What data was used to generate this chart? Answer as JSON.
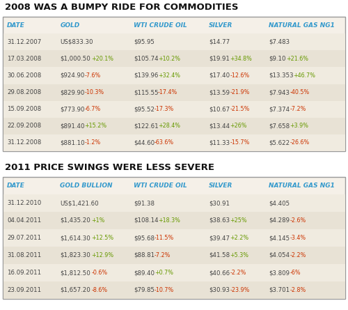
{
  "title1": "2008 WAS A BUMPY RIDE FOR COMMODITIES",
  "title2": "2011 PRICE SWINGS WERE LESS SEVERE",
  "headers1": [
    "DATE",
    "GOLD",
    "WTI CRUDE OIL",
    "SILVER",
    "NATURAL GAS NG1"
  ],
  "headers2": [
    "DATE",
    "GOLD BULLION",
    "WTI CRUDE OIL",
    "SILVER",
    "NATURAL GAS NG1"
  ],
  "table1": [
    [
      "31.12.2007",
      "US$833.30",
      "",
      "$95.95",
      "",
      "$14.77",
      "",
      "$7.483",
      ""
    ],
    [
      "17.03.2008",
      "$1,000.50",
      "+20.1%",
      "$105.74",
      "+10.2%",
      "$19.91",
      "+34.8%",
      "$9.10",
      "+21.6%"
    ],
    [
      "30.06.2008",
      "$924.90",
      "-7.6%",
      "$139.96",
      "+32.4%",
      "$17.40",
      "-12.6%",
      "$13.353",
      "+46.7%"
    ],
    [
      "29.08.2008",
      "$829.90",
      "-10.3%",
      "$115.55",
      "-17.4%",
      "$13.59",
      "-21.9%",
      "$7.943",
      "-40.5%"
    ],
    [
      "15.09.2008",
      "$773.90",
      "-6.7%",
      "$95.52",
      "-17.3%",
      "$10.67",
      "-21.5%",
      "$7.374",
      "-7.2%"
    ],
    [
      "22.09.2008",
      "$891.40",
      "+15.2%",
      "$122.61",
      "+28.4%",
      "$13.44",
      "+26%",
      "$7.658",
      "+3.9%"
    ],
    [
      "31.12.2008",
      "$881.10",
      "-1.2%",
      "$44.60",
      "-63.6%",
      "$11.33",
      "-15.7%",
      "$5.622",
      "-26.6%"
    ]
  ],
  "table2": [
    [
      "31.12.2010",
      "US$1,421.60",
      "",
      "$91.38",
      "",
      "$30.91",
      "",
      "$4.405",
      ""
    ],
    [
      "04.04.2011",
      "$1,435.20",
      "+1%",
      "$108.14",
      "+18.3%",
      "$38.63",
      "+25%",
      "$4.289",
      "-2.6%"
    ],
    [
      "29.07.2011",
      "$1,614.30",
      "+12.5%",
      "$95.68",
      "-11.5%",
      "$39.47",
      "+2.2%",
      "$4.145",
      "-3.4%"
    ],
    [
      "31.08.2011",
      "$1,823.30",
      "+12.9%",
      "$88.81",
      "-7.2%",
      "$41.58",
      "+5.3%",
      "$4.054",
      "-2.2%"
    ],
    [
      "16.09.2011",
      "$1,812.50",
      "-0.6%",
      "$89.40",
      "+0.7%",
      "$40.66",
      "-2.2%",
      "$3.809",
      "-6%"
    ],
    [
      "23.09.2011",
      "$1,657.20",
      "-8.6%",
      "$79.85",
      "-10.7%",
      "$30.93",
      "-23.9%",
      "$3.701",
      "-2.8%"
    ]
  ],
  "bg_color": "#f5f0e8",
  "header_color": "#3399cc",
  "pos_color": "#669900",
  "neg_color": "#cc3300",
  "text_color": "#444444",
  "border_color": "#999999",
  "title_color": "#111111",
  "row_colors": [
    "#f0ebe0",
    "#e8e2d5"
  ],
  "white": "#ffffff"
}
